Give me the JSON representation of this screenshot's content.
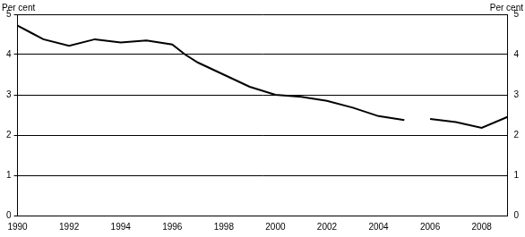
{
  "chart_data": {
    "type": "line",
    "y_label": "Per cent",
    "y2_label": "Per cent",
    "x": [
      1990,
      1990.5,
      1991,
      1992,
      1993,
      1994,
      1995,
      1996,
      1996.5,
      1997,
      1998,
      1999,
      2000,
      2001,
      2002,
      2003,
      2004,
      2005,
      2005.5,
      2006,
      2007,
      2008,
      2009
    ],
    "values": [
      4.72,
      4.55,
      4.38,
      4.22,
      4.38,
      4.3,
      4.35,
      4.25,
      4.0,
      3.8,
      3.5,
      3.2,
      3.0,
      2.95,
      2.85,
      2.68,
      2.47,
      2.37,
      null,
      2.4,
      2.32,
      2.18,
      2.45
    ],
    "color": "#000000",
    "xlim": [
      1990,
      2009
    ],
    "xticks": [
      1990,
      1992,
      1994,
      1996,
      1998,
      2000,
      2002,
      2004,
      2006,
      2008
    ],
    "ylim": [
      0,
      5
    ],
    "yticks": [
      0,
      1,
      2,
      3,
      4,
      5
    ],
    "y2lim": [
      0,
      5
    ],
    "y2ticks": [
      0,
      1,
      2,
      3,
      4,
      5
    ],
    "grid": true
  }
}
